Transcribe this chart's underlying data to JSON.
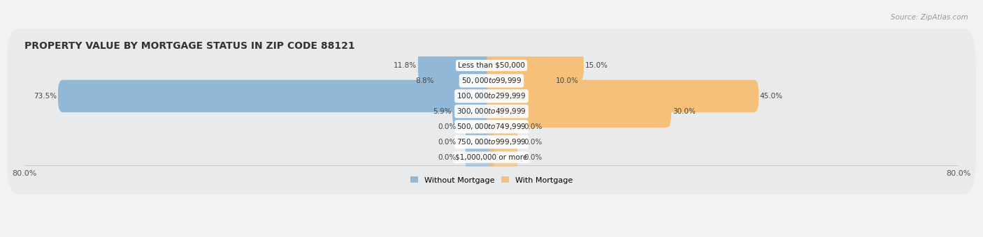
{
  "title": "PROPERTY VALUE BY MORTGAGE STATUS IN ZIP CODE 88121",
  "source": "Source: ZipAtlas.com",
  "categories": [
    "Less than $50,000",
    "$50,000 to $99,999",
    "$100,000 to $299,999",
    "$300,000 to $499,999",
    "$500,000 to $749,999",
    "$750,000 to $999,999",
    "$1,000,000 or more"
  ],
  "without_mortgage": [
    11.8,
    8.8,
    73.5,
    5.9,
    0.0,
    0.0,
    0.0
  ],
  "with_mortgage": [
    15.0,
    10.0,
    45.0,
    30.0,
    0.0,
    0.0,
    0.0
  ],
  "xlim": 80,
  "bar_color_left": "#92b8d8",
  "bar_color_right": "#f5c07a",
  "fig_bg": "#f2f2f2",
  "row_bg_light": "#ebebeb",
  "row_bg_dark": "#e0e0e0",
  "title_fontsize": 10,
  "label_fontsize": 7.5,
  "tick_fontsize": 8,
  "source_fontsize": 7.5
}
